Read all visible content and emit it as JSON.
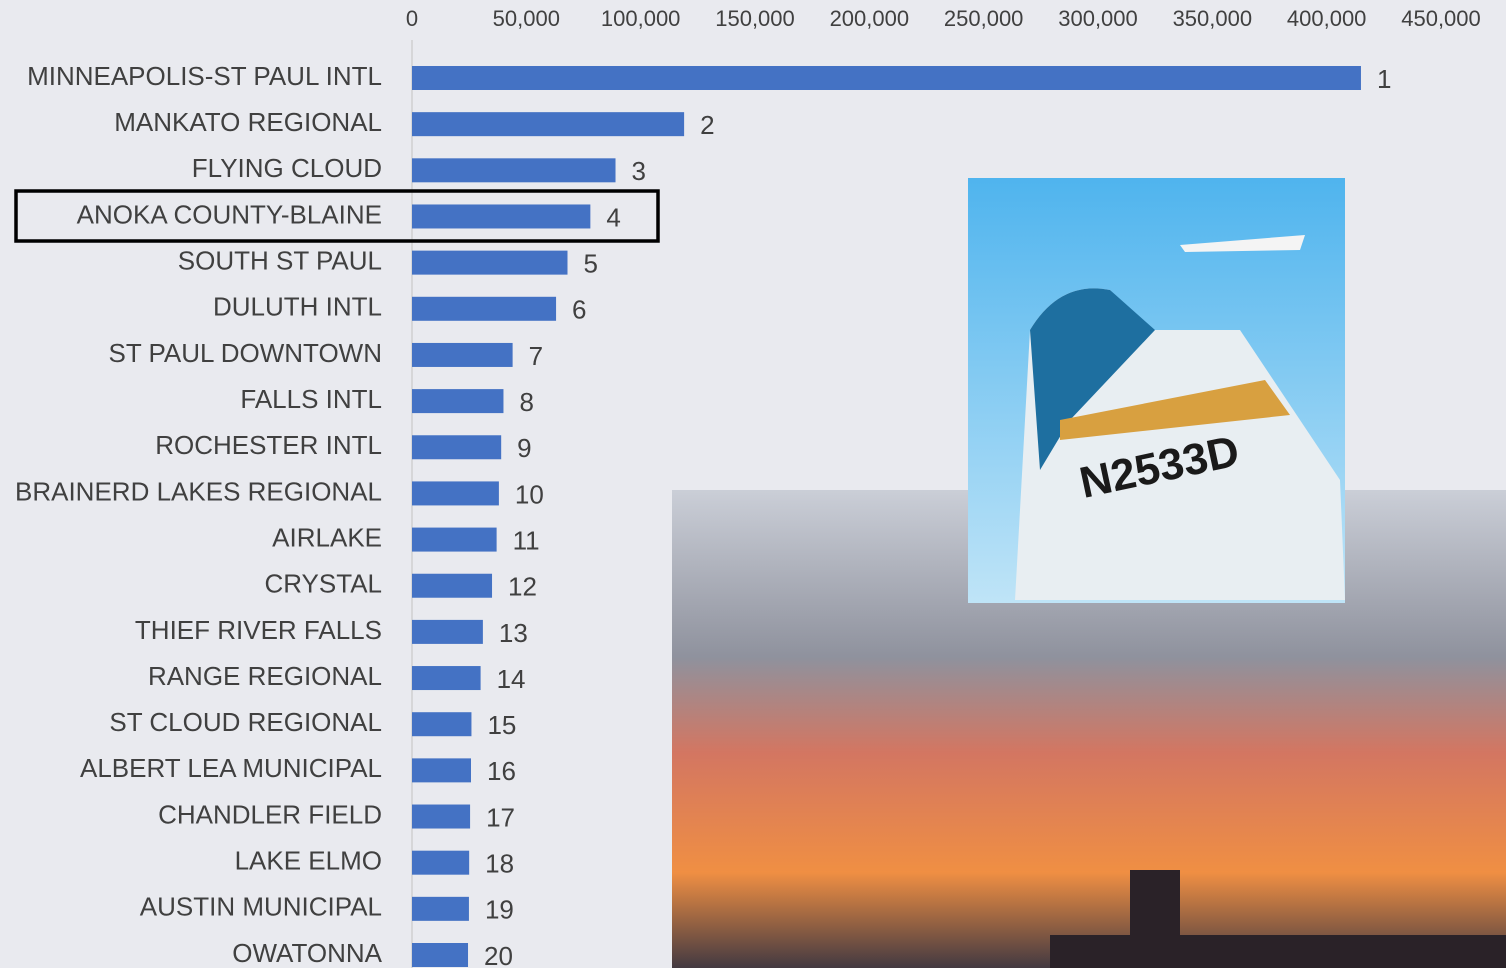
{
  "chart_data": {
    "type": "bar",
    "orientation": "horizontal",
    "categories": [
      "MINNEAPOLIS-ST PAUL INTL",
      "MANKATO REGIONAL",
      "FLYING CLOUD",
      "ANOKA COUNTY-BLAINE",
      "SOUTH ST PAUL",
      "DULUTH INTL",
      "ST PAUL DOWNTOWN",
      "FALLS INTL",
      "ROCHESTER INTL",
      "BRAINERD LAKES REGIONAL",
      "AIRLAKE",
      "CRYSTAL",
      "THIEF RIVER FALLS",
      "RANGE REGIONAL",
      "ST CLOUD REGIONAL",
      "ALBERT LEA MUNICIPAL",
      "CHANDLER FIELD",
      "LAKE ELMO",
      "AUSTIN MUNICIPAL",
      "OWATONNA"
    ],
    "values": [
      415000,
      119000,
      89000,
      78000,
      68000,
      63000,
      44000,
      40000,
      39000,
      38000,
      37000,
      35000,
      31000,
      30000,
      26000,
      25800,
      25400,
      25000,
      24900,
      24500
    ],
    "ranks": [
      1,
      2,
      3,
      4,
      5,
      6,
      7,
      8,
      9,
      10,
      11,
      12,
      13,
      14,
      15,
      16,
      17,
      18,
      19,
      20
    ],
    "color": "#4472c4",
    "xlim": [
      0,
      450000
    ],
    "xticks": [
      0,
      {
        "value": 50000,
        "label": "50,000"
      },
      {
        "value": 100000,
        "label": "100,000"
      },
      {
        "value": 150000,
        "label": "150,000"
      },
      {
        "value": 200000,
        "label": "200,000"
      },
      {
        "value": 250000,
        "label": "250,000"
      },
      {
        "value": 300000,
        "label": "300,000"
      },
      {
        "value": 350000,
        "label": "350,000"
      },
      {
        "value": 400000,
        "label": "400,000"
      },
      {
        "value": 450000,
        "label": "450,000"
      }
    ],
    "grid": false,
    "annotation": "N2533D"
  }
}
